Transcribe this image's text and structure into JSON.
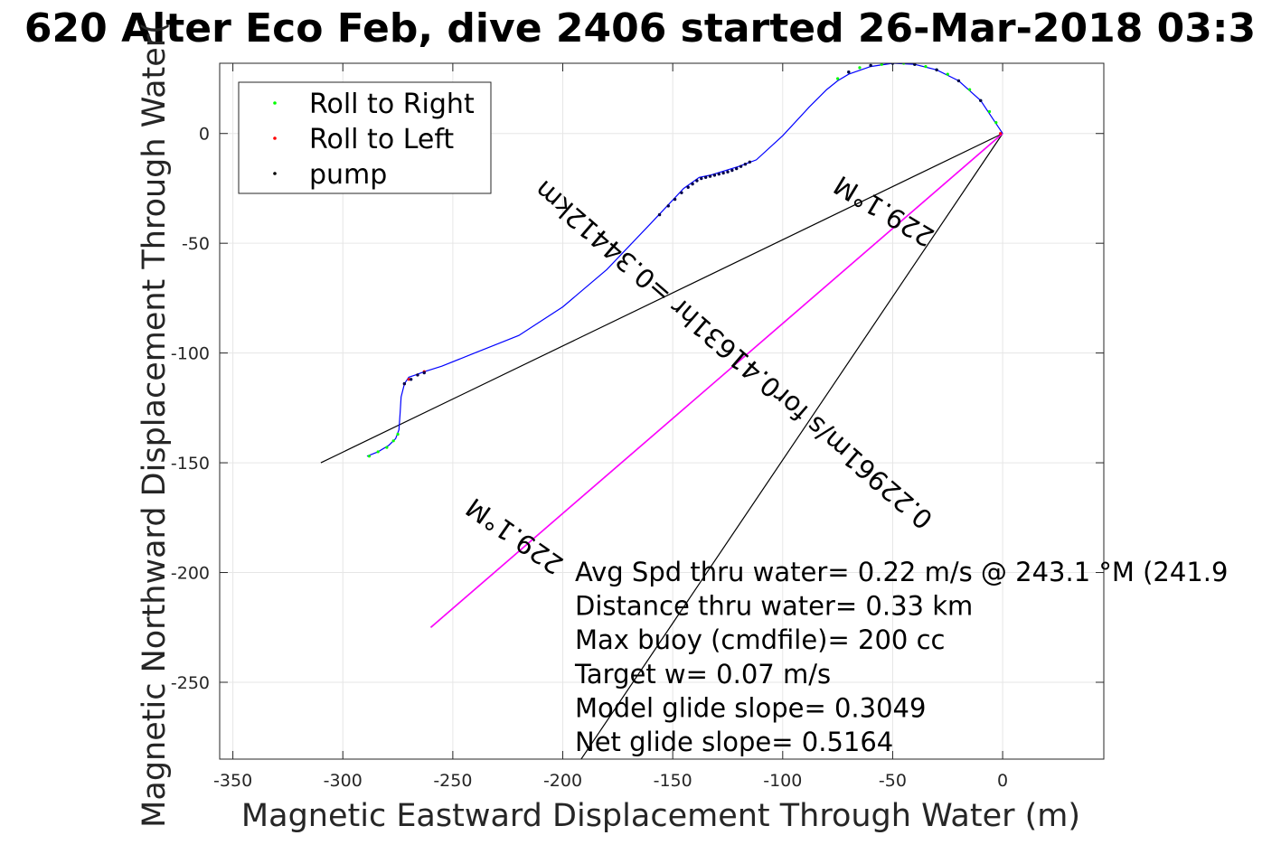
{
  "chart_data": {
    "type": "line",
    "title": "620 Alter Eco Feb, dive 2406 started 26-Mar-2018 03:3",
    "xlabel": "Magnetic Eastward Displacement Through Water (m)",
    "ylabel": "Magnetic Northward Displacement Through Water(",
    "xlim": [
      -356,
      46
    ],
    "ylim": [
      -285,
      32
    ],
    "xticks": [
      -350,
      -300,
      -250,
      -200,
      -150,
      -100,
      -50,
      0
    ],
    "yticks": [
      -250,
      -200,
      -150,
      -100,
      -50,
      0
    ],
    "grid": true,
    "legend_position": "top-left",
    "legend": [
      {
        "label": "Roll to Right",
        "color": "#00ff00"
      },
      {
        "label": "Roll to Left",
        "color": "#ff0000"
      },
      {
        "label": "pump",
        "color": "#000000"
      }
    ],
    "track": {
      "color": "#0000ff",
      "x": [
        -289,
        -284,
        -279,
        -276,
        -274.5,
        -274,
        -273.5,
        -272,
        -270,
        -267,
        -263,
        -255,
        -240,
        -220,
        -200,
        -180,
        -160,
        -145,
        -138,
        -133,
        -128,
        -120,
        -112,
        -100,
        -88,
        -80,
        -75,
        -70,
        -60,
        -50,
        -40,
        -30,
        -20,
        -10,
        -4,
        0
      ],
      "y": [
        -147,
        -145,
        -142,
        -139,
        -135,
        -128,
        -120,
        -114,
        -111,
        -110,
        -108.5,
        -106,
        -100,
        -92,
        -79,
        -62,
        -41,
        -25,
        -20,
        -19,
        -17.5,
        -15,
        -12,
        -1,
        12,
        20,
        24,
        27,
        30.5,
        32,
        31.5,
        29,
        24,
        15,
        6,
        0
      ]
    },
    "roll_right": {
      "color": "#00ff00",
      "x": [
        -288,
        -284,
        -280,
        -277,
        -275,
        -75,
        -70,
        -65,
        -60,
        -55,
        -50,
        -45,
        -40,
        -35,
        -30,
        -25,
        -20,
        -15,
        -10,
        -6,
        -3
      ],
      "y": [
        -147,
        -145,
        -143,
        -140,
        -137,
        25,
        28,
        30,
        31,
        31.5,
        32,
        32,
        31.5,
        30.5,
        29,
        27,
        24,
        20,
        15,
        10,
        5
      ]
    },
    "roll_left": {
      "color": "#ff0000",
      "x": [
        -272,
        -270,
        -266,
        -263,
        -1
      ],
      "y": [
        -114,
        -112,
        -110,
        -108.5,
        0
      ]
    },
    "pump": {
      "color": "#00004a",
      "x": [
        -156,
        -152,
        -149,
        -146,
        -143,
        -141,
        -139,
        -137,
        -135,
        -133,
        -131,
        -129,
        -127,
        -125,
        -123,
        -121,
        -119,
        -117,
        -115,
        -272,
        -269,
        -266,
        -263,
        -70,
        -60,
        -50,
        -40,
        -30,
        -20,
        -10
      ],
      "y": [
        -37,
        -33,
        -30,
        -27,
        -24.5,
        -23,
        -21.5,
        -20.5,
        -20,
        -19.5,
        -19,
        -18.5,
        -18,
        -17.5,
        -16.8,
        -16,
        -15,
        -14,
        -13,
        -114,
        -112,
        -110,
        -109,
        28,
        31,
        32,
        31.5,
        29,
        24,
        15
      ]
    },
    "heading_wedge": {
      "color": "#000000",
      "origin": [
        0,
        0
      ],
      "ends": [
        [
          -310,
          -150
        ],
        [
          -195,
          -290
        ],
        [
          -260,
          -225
        ]
      ]
    },
    "heading_arrow": {
      "color": "#ff00ff",
      "from": [
        0,
        0
      ],
      "to": [
        -260,
        -225
      ]
    },
    "annotations": [
      "0.22961m/s for0.41631hr =0.34412km",
      "229.1°M",
      "229.1°M"
    ],
    "stats": [
      "Avg Spd thru water=  0.22 m/s @ 243.1 °M (241.9",
      "Distance thru water=  0.33 km",
      "Max buoy (cmdfile)= 200 cc",
      "Target w= 0.07 m/s",
      "Model glide slope= 0.3049",
      "Net glide slope= 0.5164"
    ]
  }
}
